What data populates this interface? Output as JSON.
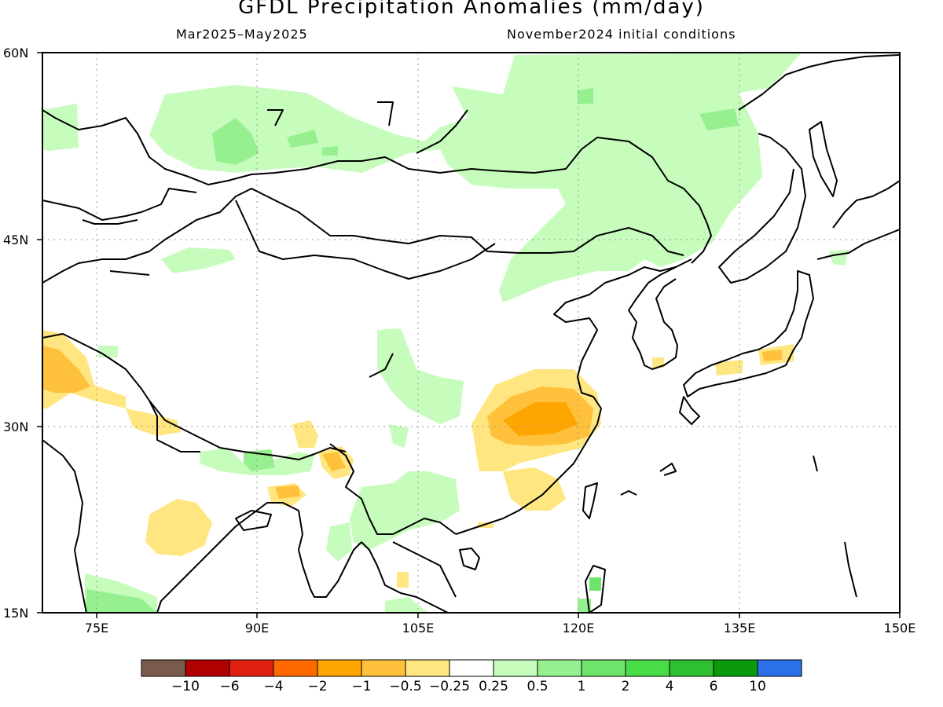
{
  "header": {
    "title": "GFDL Precipitation Anomalies (mm/day)",
    "period": "Mar2025–May2025",
    "initial_conditions": "November2024 initial conditions"
  },
  "axes": {
    "lat_labels": [
      "60N",
      "45N",
      "30N",
      "15N"
    ],
    "lon_labels": [
      "75E",
      "90E",
      "105E",
      "120E",
      "135E",
      "150E"
    ],
    "lat_range": [
      15,
      60
    ],
    "lon_range": [
      70,
      150
    ],
    "gridlines": "dotted"
  },
  "colorbar": {
    "colors": [
      "#7a5a4a",
      "#b00000",
      "#e02010",
      "#ff6a00",
      "#ffa500",
      "#ffc13b",
      "#ffe680",
      "#ffffff",
      "#c6fcbc",
      "#97f08f",
      "#6ee56a",
      "#48dc48",
      "#2fc02f",
      "#0a9a0a",
      "#2a70e8"
    ],
    "labels": [
      "−10",
      "−6",
      "−4",
      "−2",
      "−1",
      "−0.5",
      "−0.25",
      "0.25",
      "0.5",
      "1",
      "2",
      "4",
      "6",
      "10"
    ]
  },
  "palette": {
    "dry_light": "#ffe680",
    "dry_mid": "#ffc13b",
    "dry_strong": "#ffa500",
    "wet_light": "#c6fcbc",
    "wet_mid": "#97f08f",
    "wet_strong": "#6ee56a",
    "coast": "#000000"
  }
}
